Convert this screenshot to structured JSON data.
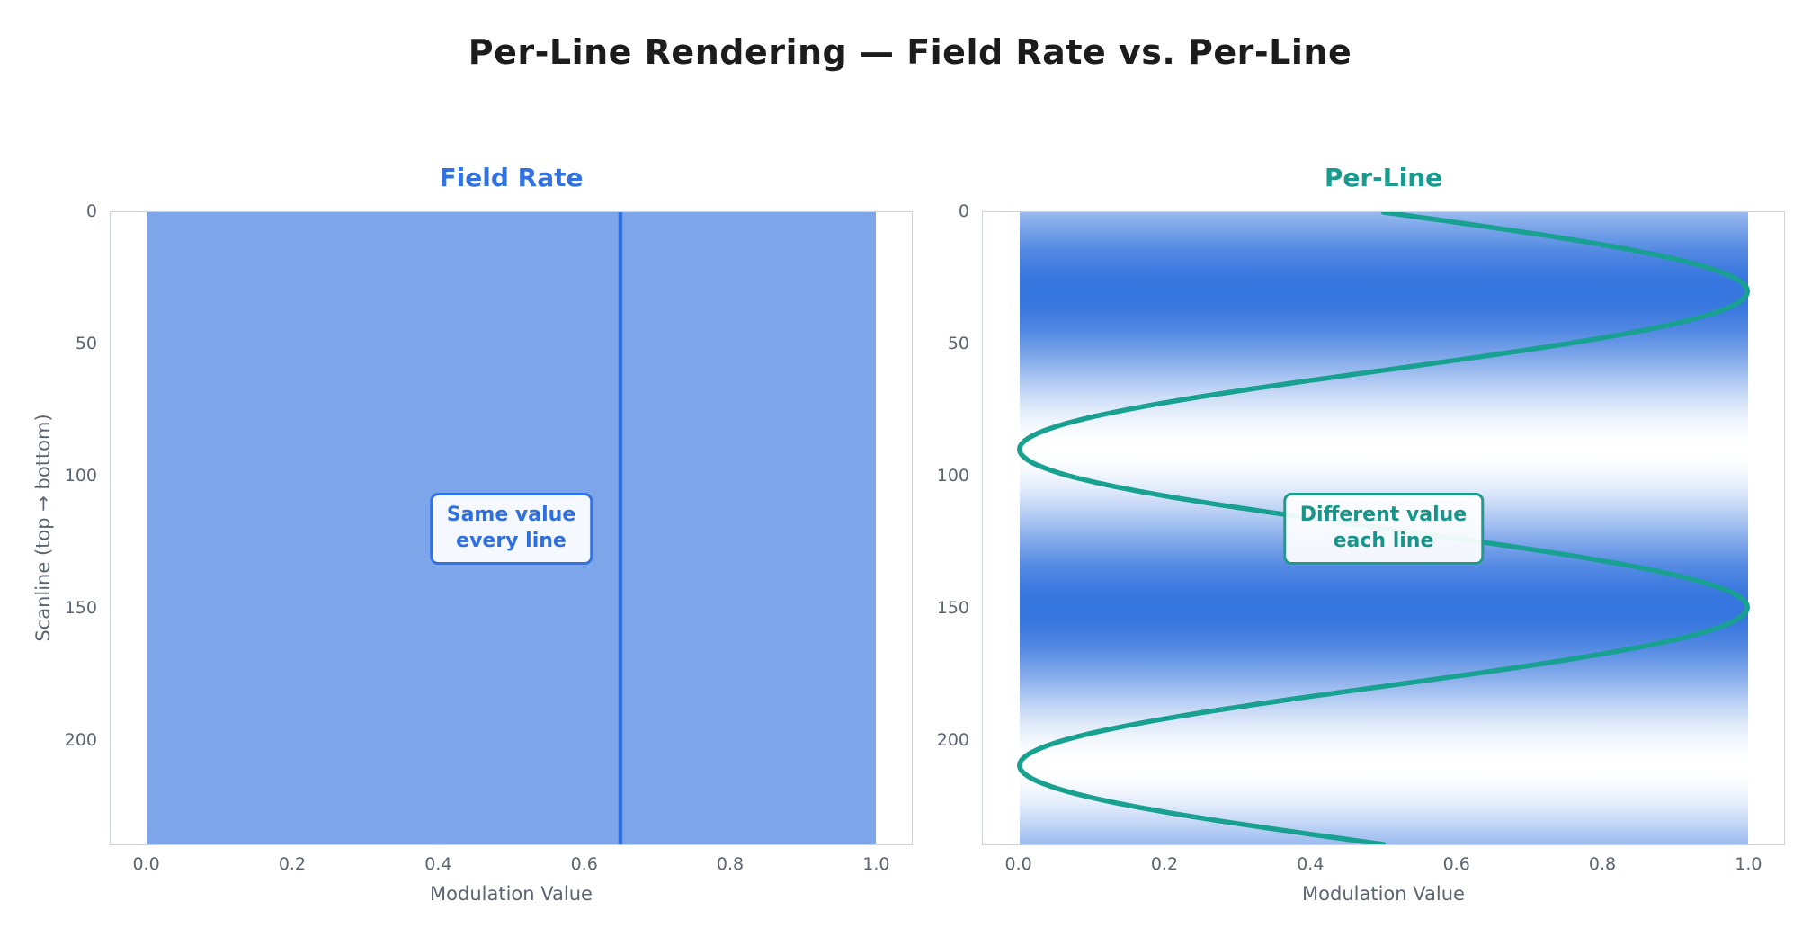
{
  "title": "Per-Line Rendering — Field Rate vs. Per-Line",
  "colors": {
    "accent_blue": "#3273e1",
    "vline_blue": "#2e70e1",
    "teal": "#18a090",
    "cmap_low": "#ffffff",
    "cmap_high": "#3575de",
    "axis_text": "#5b6472",
    "spine": "#cdd3de",
    "title_text": "#1c1c1c"
  },
  "axes": {
    "xlabel": "Modulation Value",
    "ylabel": "Scanline (top → bottom)",
    "x_tick_labels": [
      "0.0",
      "0.2",
      "0.4",
      "0.6",
      "0.8",
      "1.0"
    ],
    "x_tick_values": [
      0.0,
      0.2,
      0.4,
      0.6,
      0.8,
      1.0
    ],
    "y_tick_labels": [
      "0",
      "50",
      "100",
      "150",
      "200"
    ],
    "y_tick_values": [
      0,
      50,
      100,
      150,
      200
    ],
    "xlim": [
      -0.05,
      1.05
    ],
    "ylim": [
      240,
      0
    ],
    "scanlines": 240
  },
  "chart_data": [
    {
      "type": "line",
      "title": "Field Rate",
      "xlabel": "Modulation Value",
      "ylabel": "Scanline (top → bottom)",
      "xlim": [
        -0.05,
        1.05
      ],
      "ylim": [
        240,
        0
      ],
      "description": "Constant modulation value on every scanline; background is the constant value mapped through a white-to-blue colormap over x 0..1",
      "constant_value": 0.65,
      "scanlines": 240,
      "annotation": "Same value\nevery line",
      "key_points": [
        {
          "scanline": 0,
          "value": 0.65
        },
        {
          "scanline": 240,
          "value": 0.65
        }
      ]
    },
    {
      "type": "line",
      "title": "Per-Line",
      "xlabel": "Modulation Value",
      "ylabel": "Scanline (top → bottom)",
      "xlim": [
        -0.05,
        1.05
      ],
      "ylim": [
        240,
        0
      ],
      "description": "Sinusoidal modulation value per scanline; background is each scanline's value mapped through a white-to-blue colormap over x 0..1",
      "wave": {
        "offset": 0.5,
        "amplitude": 0.5,
        "period_scanlines": 120
      },
      "scanlines": 240,
      "annotation": "Different value\neach line",
      "key_points": [
        {
          "scanline": 0,
          "value": 0.5
        },
        {
          "scanline": 30,
          "value": 1.0
        },
        {
          "scanline": 90,
          "value": 0.0
        },
        {
          "scanline": 150,
          "value": 1.0
        },
        {
          "scanline": 210,
          "value": 0.0
        },
        {
          "scanline": 240,
          "value": 0.5
        }
      ]
    }
  ]
}
